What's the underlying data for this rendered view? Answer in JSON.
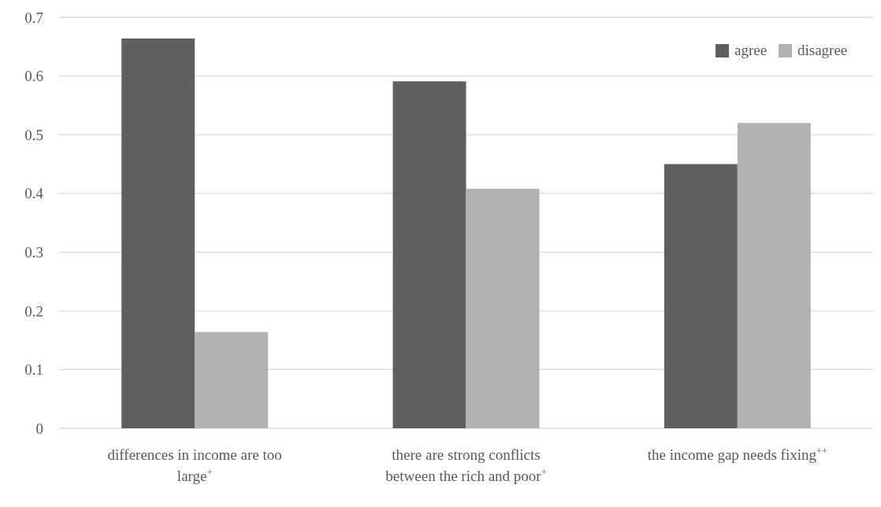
{
  "chart_data": {
    "type": "bar",
    "categories": [
      "differences in income are too large$^{+}$",
      "there are strong conflicts between the rich and poor$^{+}$",
      "the income gap needs fixing$^{++}$"
    ],
    "series": [
      {
        "name": "agree",
        "color": "#5f5f5f",
        "values": [
          0.664,
          0.591,
          0.45
        ]
      },
      {
        "name": "disagree",
        "color": "#b2b2b2",
        "values": [
          0.164,
          0.408,
          0.52
        ]
      }
    ],
    "ylim": [
      0,
      0.7
    ],
    "yticks": [
      0,
      0.1,
      0.2,
      0.3,
      0.4,
      0.5,
      0.6,
      0.7
    ],
    "grid": "y",
    "legend": "top right"
  }
}
